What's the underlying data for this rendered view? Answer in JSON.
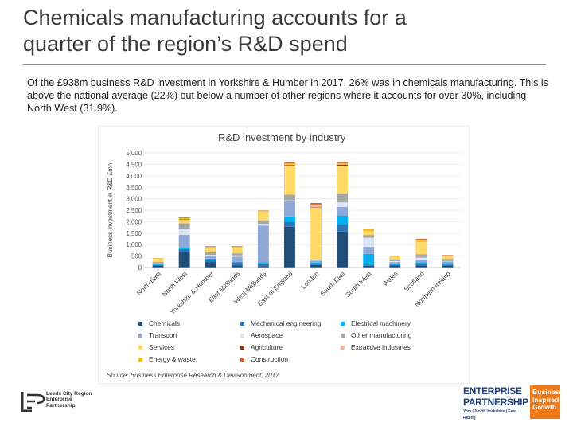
{
  "slide": {
    "title_line1": "Chemicals manufacturing accounts for a",
    "title_line2": "quarter of the region’s R&D spend",
    "intro": "Of the £938m business R&D investment in Yorkshire & Humber in 2017, 26% was in chemicals manufacturing. This is above the national average (22%) but below a number of other regions where it accounts for over 30%, including North West (31.9%)."
  },
  "chart_data": {
    "type": "bar",
    "stacked": true,
    "title": "R&D investment by industry",
    "xlabel": "",
    "ylabel": "Business investment in R&D £mn",
    "ylim": [
      0,
      5000
    ],
    "yticks": [
      "0",
      "500",
      "1,000",
      "1,500",
      "2,000",
      "2,500",
      "3,000",
      "3,500",
      "4,000",
      "4,500",
      "5,000"
    ],
    "ytick_values": [
      0,
      500,
      1000,
      1500,
      2000,
      2500,
      3000,
      3500,
      4000,
      4500,
      5000
    ],
    "categories": [
      "North East",
      "North West",
      "Yorkshire & Humber",
      "East Midlands",
      "West Midlands",
      "East of England",
      "London",
      "South East",
      "South West",
      "Wales",
      "Scotland",
      "Northern Ireland"
    ],
    "series": [
      {
        "name": "Chemicals",
        "color": "#1f4e79",
        "values": [
          70,
          680,
          240,
          100,
          60,
          1780,
          110,
          1570,
          80,
          70,
          90,
          70
        ]
      },
      {
        "name": "Mechanical engineering",
        "color": "#2e75b6",
        "values": [
          40,
          120,
          80,
          110,
          120,
          200,
          50,
          320,
          40,
          50,
          60,
          60
        ]
      },
      {
        "name": "Electrical machinery",
        "color": "#00b0f0",
        "values": [
          30,
          80,
          70,
          40,
          50,
          250,
          60,
          380,
          480,
          40,
          80,
          60
        ]
      },
      {
        "name": "Transport",
        "color": "#8fa8d8",
        "values": [
          60,
          550,
          110,
          220,
          1600,
          650,
          60,
          370,
          300,
          80,
          120,
          70
        ]
      },
      {
        "name": "Aerospace",
        "color": "#dbe5f5",
        "values": [
          0,
          250,
          50,
          60,
          80,
          50,
          10,
          200,
          400,
          40,
          80,
          20
        ]
      },
      {
        "name": "Other manufacturing",
        "color": "#a6a6a6",
        "values": [
          40,
          250,
          110,
          90,
          150,
          250,
          60,
          400,
          120,
          80,
          150,
          100
        ]
      },
      {
        "name": "Services",
        "color": "#ffd966",
        "values": [
          150,
          150,
          220,
          260,
          380,
          1250,
          2260,
          1200,
          200,
          130,
          550,
          120
        ]
      },
      {
        "name": "Agriculture",
        "color": "#7f3f1f",
        "values": [
          0,
          20,
          10,
          10,
          0,
          40,
          20,
          40,
          10,
          0,
          10,
          0
        ]
      },
      {
        "name": "Extractive industries",
        "color": "#f4b8a0",
        "values": [
          0,
          20,
          10,
          0,
          0,
          20,
          80,
          20,
          0,
          0,
          20,
          0
        ]
      },
      {
        "name": "Energy & waste",
        "color": "#ffc000",
        "values": [
          10,
          30,
          10,
          20,
          20,
          50,
          40,
          60,
          30,
          20,
          60,
          20
        ]
      },
      {
        "name": "Construction",
        "color": "#d55a1e",
        "values": [
          10,
          30,
          20,
          20,
          20,
          40,
          60,
          40,
          20,
          10,
          30,
          20
        ]
      }
    ],
    "legend_position": "bottom",
    "source": "Source: Business Enterprise Research & Development, 2017"
  },
  "logos": {
    "lep_lines": [
      "Leeds City Region",
      "Enterprise",
      "Partnership"
    ],
    "ep_line1": "ENTERPRISE",
    "ep_line2": "PARTNERSHIP",
    "ep_sub": "York | North Yorkshire | East Riding",
    "ep_box_lines": [
      "Business",
      "Inspired",
      "Growth"
    ]
  }
}
